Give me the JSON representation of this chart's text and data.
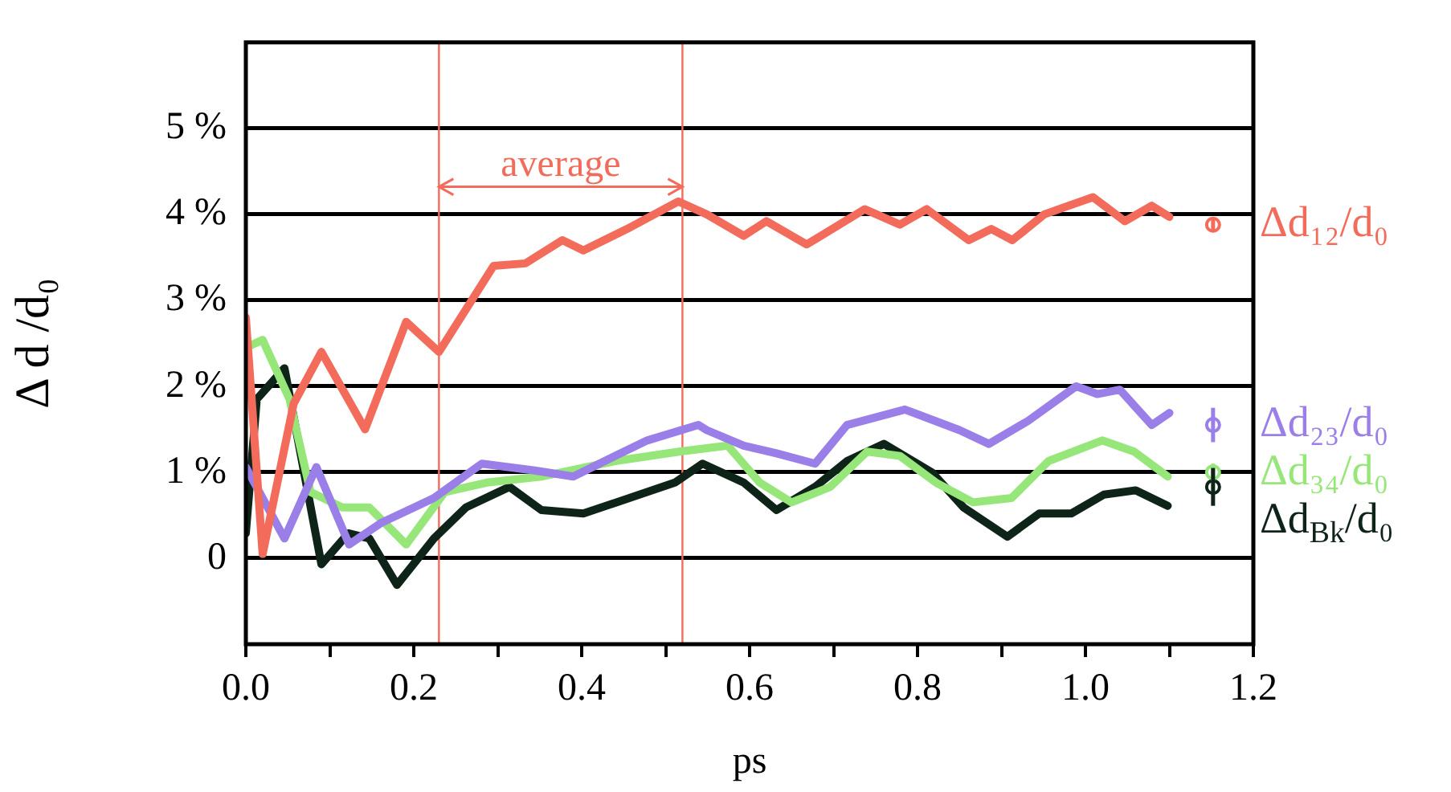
{
  "chart_data": {
    "type": "line",
    "xlabel": "ps",
    "ylabel": "Δ d /d₀",
    "xlim": [
      0,
      1.2
    ],
    "ylim": [
      -1,
      6
    ],
    "xticks": [
      {
        "value": 0,
        "label": "0.0"
      },
      {
        "value": 0.1,
        "label": null
      },
      {
        "value": 0.2,
        "label": "0.2"
      },
      {
        "value": 0.3,
        "label": null
      },
      {
        "value": 0.4,
        "label": "0.4"
      },
      {
        "value": 0.5,
        "label": null
      },
      {
        "value": 0.6,
        "label": "0.6"
      },
      {
        "value": 0.7,
        "label": null
      },
      {
        "value": 0.8,
        "label": "0.8"
      },
      {
        "value": 0.9,
        "label": null
      },
      {
        "value": 1.0,
        "label": "1.0"
      },
      {
        "value": 1.1,
        "label": null
      },
      {
        "value": 1.2,
        "label": "1.2"
      }
    ],
    "yticks": [
      {
        "value": 0,
        "label": "0"
      },
      {
        "value": 1,
        "label": "1 %"
      },
      {
        "value": 2,
        "label": "2 %"
      },
      {
        "value": 3,
        "label": "3 %"
      },
      {
        "value": 4,
        "label": "4 %"
      },
      {
        "value": 5,
        "label": "5 %"
      }
    ],
    "grid": "y",
    "legend": false,
    "line_style": "solid",
    "series": [
      {
        "name": "Δd₁₂/d₀",
        "color": "#f26b5b",
        "x": [
          0,
          0.02,
          0.057,
          0.09,
          0.142,
          0.191,
          0.23,
          0.295,
          0.333,
          0.377,
          0.402,
          0.454,
          0.515,
          0.549,
          0.593,
          0.62,
          0.668,
          0.737,
          0.779,
          0.811,
          0.861,
          0.888,
          0.913,
          0.951,
          1.009,
          1.047,
          1.079,
          1.1
        ],
        "values": [
          2.8,
          0.05,
          1.8,
          2.4,
          1.5,
          2.75,
          2.4,
          3.4,
          3.43,
          3.7,
          3.58,
          3.83,
          4.15,
          4.0,
          3.75,
          3.92,
          3.65,
          4.06,
          3.88,
          4.06,
          3.7,
          3.83,
          3.7,
          4.0,
          4.2,
          3.92,
          4.1,
          3.97
        ]
      },
      {
        "name": "Δd₂₃/d₀",
        "color": "#9b7fe8",
        "x": [
          0,
          0.046,
          0.084,
          0.123,
          0.161,
          0.224,
          0.281,
          0.344,
          0.39,
          0.44,
          0.478,
          0.539,
          0.549,
          0.593,
          0.632,
          0.678,
          0.716,
          0.785,
          0.85,
          0.885,
          0.932,
          0.989,
          1.014,
          1.041,
          1.079,
          1.1
        ],
        "values": [
          1.06,
          0.23,
          1.06,
          0.16,
          0.41,
          0.7,
          1.1,
          1.02,
          0.95,
          1.19,
          1.37,
          1.55,
          1.49,
          1.31,
          1.22,
          1.1,
          1.55,
          1.73,
          1.49,
          1.33,
          1.6,
          2.0,
          1.91,
          1.96,
          1.55,
          1.69
        ]
      },
      {
        "name": "Δd₃₄/d₀",
        "color": "#96e67a",
        "x": [
          0,
          0.02,
          0.052,
          0.077,
          0.115,
          0.147,
          0.191,
          0.237,
          0.287,
          0.352,
          0.44,
          0.516,
          0.574,
          0.612,
          0.65,
          0.696,
          0.74,
          0.779,
          0.822,
          0.866,
          0.912,
          0.956,
          1.02,
          1.058,
          1.098
        ],
        "values": [
          2.45,
          2.54,
          1.85,
          0.77,
          0.59,
          0.59,
          0.16,
          0.77,
          0.88,
          0.95,
          1.13,
          1.24,
          1.31,
          0.88,
          0.65,
          0.83,
          1.24,
          1.19,
          0.88,
          0.65,
          0.7,
          1.13,
          1.37,
          1.24,
          0.95
        ]
      },
      {
        "name": "Δd$_{Bk}$/d₀",
        "color": "#0f2418",
        "x": [
          0,
          0.013,
          0.046,
          0.09,
          0.122,
          0.147,
          0.18,
          0.224,
          0.262,
          0.314,
          0.352,
          0.402,
          0.511,
          0.544,
          0.593,
          0.632,
          0.678,
          0.716,
          0.76,
          0.817,
          0.855,
          0.907,
          0.945,
          0.983,
          1.022,
          1.06,
          1.098
        ],
        "values": [
          0.29,
          1.85,
          2.21,
          -0.07,
          0.29,
          0.23,
          -0.31,
          0.23,
          0.59,
          0.83,
          0.56,
          0.52,
          0.88,
          1.1,
          0.88,
          0.56,
          0.83,
          1.13,
          1.33,
          1.0,
          0.59,
          0.25,
          0.52,
          0.52,
          0.74,
          0.79,
          0.61
        ]
      },
      {
        "type": "scatter",
        "marker": "circle",
        "color": "#f26b5b",
        "x": [
          1.152
        ],
        "values": [
          3.88
        ],
        "errors": [
          0.08
        ]
      },
      {
        "type": "scatter",
        "marker": "circle",
        "color": "#9b7fe8",
        "x": [
          1.152
        ],
        "values": [
          1.55
        ],
        "errors": [
          0.2
        ]
      },
      {
        "type": "scatter",
        "marker": "circle",
        "color": "#96e67a",
        "x": [
          1.152
        ],
        "values": [
          1.0
        ],
        "errors": [
          0.1
        ]
      },
      {
        "type": "scatter",
        "marker": "circle",
        "color": "#0f2418",
        "x": [
          1.152
        ],
        "values": [
          0.83
        ],
        "errors": [
          0.22
        ]
      }
    ],
    "ref_lines": [
      {
        "axis": "x",
        "value": 0.23,
        "color": "#f26b5b"
      },
      {
        "axis": "x",
        "value": 0.52,
        "color": "#f26b5b"
      }
    ],
    "annotations": [
      "average"
    ]
  }
}
